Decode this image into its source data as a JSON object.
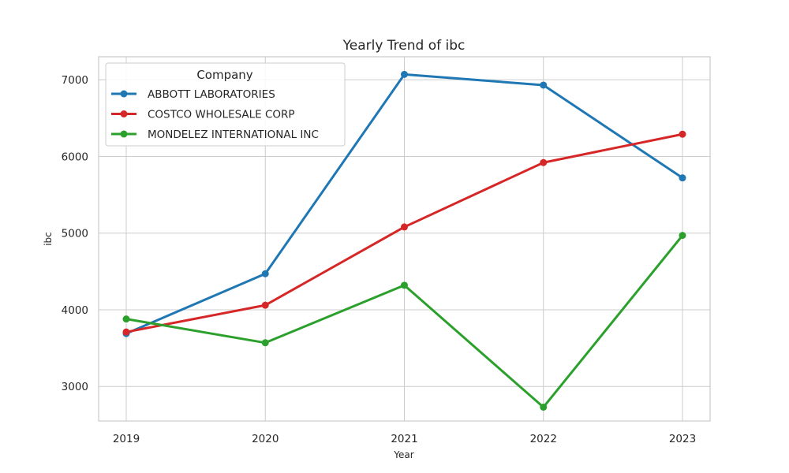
{
  "chart_data": {
    "type": "line",
    "title": "Yearly Trend of ibc",
    "xlabel": "Year",
    "ylabel": "ibc",
    "categories": [
      "2019",
      "2020",
      "2021",
      "2022",
      "2023"
    ],
    "ylim": [
      2550,
      7300
    ],
    "yticks": [
      3000,
      4000,
      5000,
      6000,
      7000
    ],
    "grid": true,
    "legend": {
      "title": "Company",
      "placement": "top-left"
    },
    "series": [
      {
        "name": "ABBOTT LABORATORIES",
        "color": "#1f77b4",
        "values": [
          3690,
          4470,
          7070,
          6930,
          5720
        ]
      },
      {
        "name": "COSTCO WHOLESALE CORP",
        "color": "#d62728",
        "values": [
          3710,
          4060,
          5080,
          5920,
          6290
        ]
      },
      {
        "name": "MONDELEZ INTERNATIONAL INC",
        "color": "#2ca02c",
        "values": [
          3880,
          3570,
          4320,
          2730,
          4970
        ]
      }
    ]
  }
}
